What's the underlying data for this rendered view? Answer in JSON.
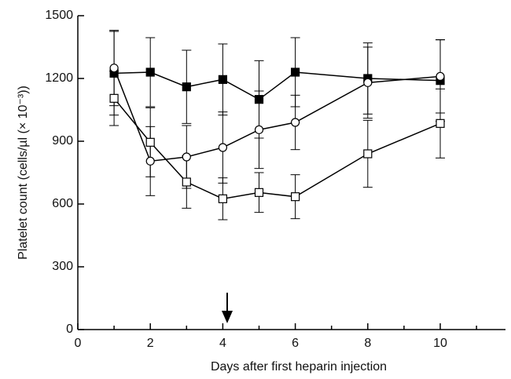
{
  "chart_data": {
    "type": "line",
    "x_label": "Days after first heparin injection",
    "y_label": "Platelet count (cells/µl (× 10⁻³))",
    "xlim": [
      0,
      11.8
    ],
    "xticks": [
      0,
      2,
      4,
      6,
      8,
      10
    ],
    "xminorticks": [
      1,
      3,
      5,
      7,
      9,
      11
    ],
    "ylim": [
      0,
      1500
    ],
    "yticks": [
      0,
      300,
      600,
      900,
      1200,
      1500
    ],
    "series": [
      {
        "marker": "square-filled",
        "color": "#000000",
        "x": [
          1,
          2,
          3,
          4,
          5,
          6,
          8,
          10
        ],
        "values": [
          1225,
          1230,
          1160,
          1195,
          1100,
          1230,
          1200,
          1190
        ],
        "errors": [
          200,
          165,
          175,
          170,
          185,
          165,
          170,
          195
        ]
      },
      {
        "marker": "circle-open",
        "color": "#000000",
        "x": [
          1,
          2,
          3,
          4,
          5,
          6,
          8,
          10
        ],
        "values": [
          1250,
          805,
          825,
          870,
          955,
          990,
          1180,
          1210
        ],
        "errors": [
          180,
          165,
          150,
          170,
          185,
          130,
          170,
          175
        ]
      },
      {
        "marker": "square-open",
        "color": "#000000",
        "x": [
          1,
          2,
          3,
          4,
          5,
          6,
          8,
          10
        ],
        "values": [
          1105,
          895,
          705,
          625,
          655,
          635,
          840,
          985
        ],
        "errors": [
          130,
          165,
          125,
          100,
          95,
          105,
          160,
          165
        ]
      }
    ]
  }
}
